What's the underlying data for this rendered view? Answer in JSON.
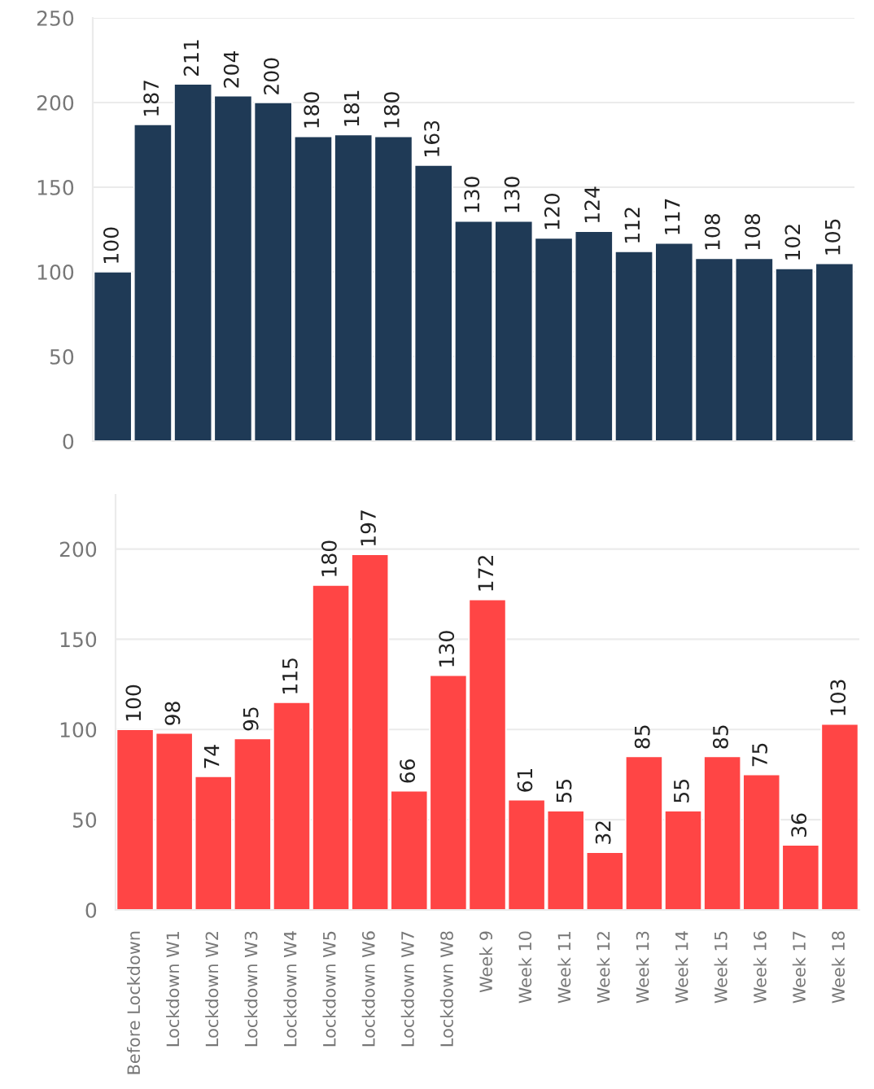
{
  "chart_data": [
    {
      "type": "bar",
      "categories": [
        null,
        null,
        null,
        null,
        null,
        null,
        null,
        null,
        null,
        null,
        null,
        null,
        null,
        null,
        null,
        null,
        null,
        null,
        null
      ],
      "values": [
        100,
        187,
        211,
        204,
        200,
        180,
        181,
        180,
        163,
        130,
        130,
        120,
        124,
        112,
        117,
        108,
        108,
        102,
        105
      ],
      "color": "#1f3a56",
      "ylim": [
        0,
        250
      ],
      "yticks": [
        0,
        50,
        100,
        150,
        200,
        250
      ],
      "grid": "y",
      "data_labels": true
    },
    {
      "type": "bar",
      "categories": [
        "Before Lockdown",
        "Lockdown W1",
        "Lockdown W2",
        "Lockdown W3",
        "Lockdown W4",
        "Lockdown W5",
        "Lockdown W6",
        "Lockdown W7",
        "Lockdown W8",
        "Week 9",
        "Week 10",
        "Week 11",
        "Week 12",
        "Week 13",
        "Week 14",
        "Week 15",
        "Week 16",
        "Week 17",
        "Week 18"
      ],
      "values": [
        100,
        98,
        74,
        95,
        115,
        180,
        197,
        66,
        130,
        172,
        61,
        55,
        32,
        85,
        55,
        85,
        75,
        36,
        103
      ],
      "color": "#ff4545",
      "ylim": [
        0,
        230
      ],
      "yticks": [
        0,
        50,
        100,
        150,
        200
      ],
      "grid": "y",
      "data_labels": true
    }
  ]
}
